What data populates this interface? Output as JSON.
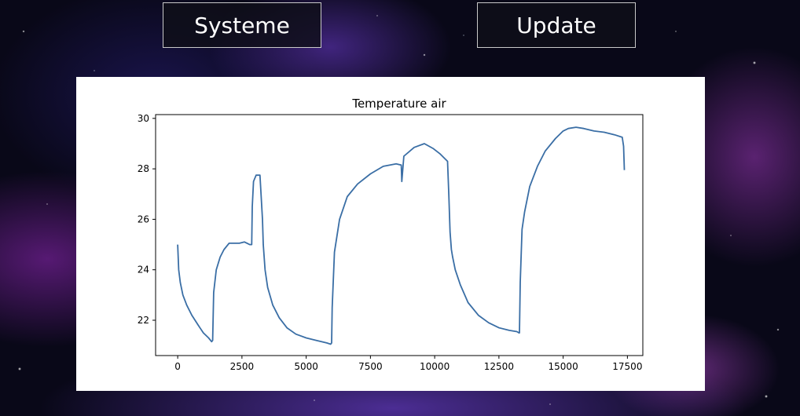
{
  "nav": {
    "systeme_label": "Systeme",
    "update_label": "Update"
  },
  "chart_data": {
    "type": "line",
    "title": "Temperature air",
    "xlabel": "",
    "ylabel": "",
    "xlim": [
      -860,
      18100
    ],
    "ylim": [
      20.6,
      30.15
    ],
    "x_ticks": [
      0,
      2500,
      5000,
      7500,
      10000,
      12500,
      15000,
      17500
    ],
    "x_tick_labels": [
      "0",
      "2500",
      "5000",
      "7500",
      "10000",
      "12500",
      "15000",
      "17500"
    ],
    "y_ticks": [
      22,
      24,
      26,
      28,
      30
    ],
    "y_tick_labels": [
      "22",
      "24",
      "26",
      "28",
      "30"
    ],
    "grid": false,
    "series": [
      {
        "color": "#3a6ea5",
        "x": [
          0,
          40,
          100,
          200,
          350,
          550,
          800,
          1000,
          1200,
          1320,
          1360,
          1400,
          1500,
          1650,
          1800,
          2000,
          2200,
          2400,
          2600,
          2800,
          2880,
          2900,
          2950,
          3050,
          3200,
          3300,
          3330,
          3400,
          3500,
          3700,
          3950,
          4250,
          4600,
          5000,
          5400,
          5800,
          5950,
          5990,
          6010,
          6100,
          6300,
          6600,
          7000,
          7500,
          8000,
          8500,
          8700,
          8720,
          8800,
          9200,
          9600,
          9950,
          10200,
          10400,
          10500,
          10550,
          10600,
          10650,
          10700,
          10800,
          11000,
          11300,
          11700,
          12100,
          12500,
          12900,
          13200,
          13280,
          13300,
          13330,
          13400,
          13500,
          13700,
          14000,
          14300,
          14700,
          15000,
          15200,
          15500,
          15800,
          16200,
          16600,
          17000,
          17300,
          17350,
          17380
        ],
        "y": [
          25.0,
          24.0,
          23.5,
          23.0,
          22.6,
          22.2,
          21.8,
          21.5,
          21.3,
          21.15,
          21.2,
          23.1,
          24.0,
          24.5,
          24.8,
          25.05,
          25.05,
          25.05,
          25.1,
          25.0,
          25.0,
          26.5,
          27.5,
          27.75,
          27.75,
          26.0,
          25.0,
          24.0,
          23.3,
          22.6,
          22.1,
          21.7,
          21.45,
          21.3,
          21.2,
          21.1,
          21.05,
          21.1,
          22.5,
          24.7,
          26.0,
          26.9,
          27.4,
          27.8,
          28.1,
          28.2,
          28.15,
          27.5,
          28.5,
          28.85,
          29.0,
          28.8,
          28.6,
          28.4,
          28.3,
          27.0,
          25.5,
          24.8,
          24.5,
          24.0,
          23.4,
          22.7,
          22.2,
          21.9,
          21.7,
          21.6,
          21.55,
          21.5,
          21.5,
          23.5,
          25.6,
          26.3,
          27.3,
          28.1,
          28.7,
          29.2,
          29.5,
          29.6,
          29.65,
          29.6,
          29.5,
          29.45,
          29.35,
          29.25,
          28.9,
          27.95
        ]
      }
    ]
  }
}
